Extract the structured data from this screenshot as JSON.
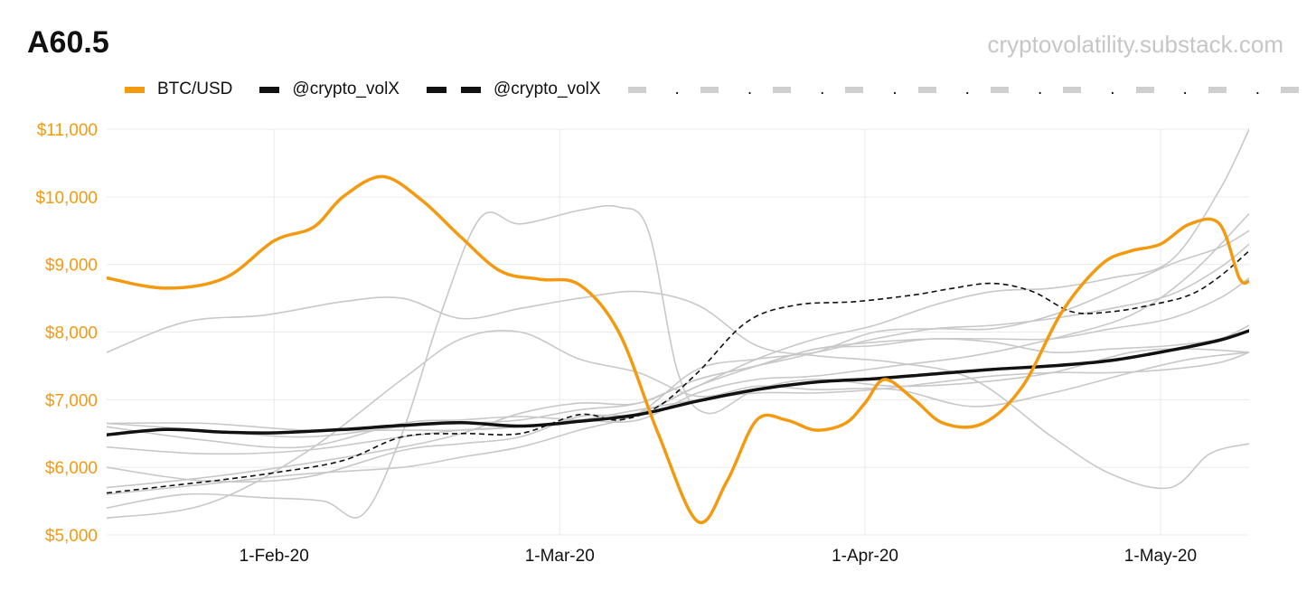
{
  "page": {
    "title": "A60.5",
    "watermark": "cryptovolatility.substack.com"
  },
  "legend": {
    "items": [
      {
        "label": "BTC/USD",
        "color": "#f39a11",
        "style": "solid"
      },
      {
        "label": "@crypto_volX",
        "color": "#111111",
        "style": "solid"
      },
      {
        "label": "@crypto_volX",
        "color": "#111111",
        "style": "dashed"
      }
    ],
    "grey_items": [
      ".",
      ".",
      ".",
      ".",
      ".",
      ".",
      ".",
      ".",
      ".",
      "."
    ]
  },
  "chart_data": {
    "type": "line",
    "title": "A60.5",
    "xlabel": "",
    "ylabel": "",
    "x_tick_labels": [
      "1-Feb-20",
      "1-Mar-20",
      "1-Apr-20",
      "1-May-20"
    ],
    "x_tick_days": [
      17,
      46,
      77,
      107
    ],
    "xlim": [
      0,
      116
    ],
    "y_tick_labels": [
      "$5,000",
      "$6,000",
      "$7,000",
      "$8,000",
      "$9,000",
      "$10,000",
      "$11,000"
    ],
    "y_ticks": [
      5000,
      6000,
      7000,
      8000,
      9000,
      10000,
      11000
    ],
    "ylim": [
      5000,
      11000
    ],
    "grid": true,
    "x_unit": "days since 16-Jan-20",
    "series": [
      {
        "name": "BTC/USD",
        "color": "#f39a11",
        "style": "solid",
        "width": 3.5,
        "x": [
          0,
          6,
          12,
          17,
          21,
          24,
          28,
          32,
          36,
          40,
          44,
          48,
          52,
          56,
          60,
          63,
          66,
          69,
          72,
          75,
          77,
          79,
          82,
          85,
          89,
          93,
          97,
          101,
          104,
          107,
          110,
          113,
          115,
          116
        ],
        "y": [
          8800,
          8650,
          8800,
          9350,
          9550,
          10000,
          10300,
          9950,
          9400,
          8900,
          8780,
          8700,
          8000,
          6500,
          5200,
          5800,
          6700,
          6700,
          6550,
          6650,
          6950,
          7300,
          7000,
          6650,
          6650,
          7200,
          8300,
          9000,
          9200,
          9300,
          9600,
          9600,
          8800,
          8750
        ]
      },
      {
        "name": "@crypto_volX",
        "color": "#111111",
        "style": "solid",
        "width": 3.5,
        "x": [
          0,
          6,
          12,
          17,
          24,
          30,
          36,
          42,
          48,
          54,
          60,
          66,
          72,
          78,
          84,
          90,
          96,
          102,
          108,
          113,
          116
        ],
        "y": [
          6480,
          6560,
          6520,
          6510,
          6560,
          6620,
          6660,
          6610,
          6680,
          6780,
          6980,
          7150,
          7260,
          7310,
          7380,
          7450,
          7500,
          7580,
          7730,
          7880,
          8020
        ]
      },
      {
        "name": "@crypto_volX",
        "color": "#111111",
        "style": "dashed",
        "width": 1.6,
        "x": [
          0,
          6,
          12,
          17,
          24,
          30,
          36,
          42,
          48,
          52,
          56,
          60,
          65,
          70,
          76,
          82,
          86,
          90,
          94,
          98,
          102,
          106,
          110,
          113,
          116
        ],
        "y": [
          5620,
          5720,
          5820,
          5920,
          6100,
          6450,
          6500,
          6500,
          6780,
          6700,
          6900,
          7400,
          8150,
          8400,
          8450,
          8550,
          8650,
          8720,
          8600,
          8300,
          8300,
          8400,
          8550,
          8820,
          9200
        ]
      },
      {
        "name": "grey-1",
        "color": "#c8c8c8",
        "style": "solid",
        "width": 1.6,
        "x": [
          0,
          8,
          16,
          24,
          30,
          36,
          42,
          48,
          54,
          60,
          66,
          72,
          80,
          88,
          96,
          102,
          108,
          112,
          116
        ],
        "y": [
          7700,
          8150,
          8250,
          8450,
          8500,
          8200,
          8350,
          8500,
          8600,
          8400,
          7800,
          7650,
          7550,
          7300,
          6450,
          5900,
          5700,
          6200,
          6350
        ]
      },
      {
        "name": "grey-2",
        "color": "#c8c8c8",
        "style": "solid",
        "width": 1.6,
        "x": [
          0,
          8,
          16,
          22,
          26,
          30,
          34,
          38,
          42,
          48,
          52,
          55,
          58,
          61,
          66,
          72,
          80,
          88,
          96,
          104,
          110,
          116
        ],
        "y": [
          5400,
          5600,
          5550,
          5500,
          5300,
          6500,
          8300,
          9700,
          9600,
          9800,
          9850,
          9500,
          7400,
          6800,
          7150,
          7300,
          7200,
          7250,
          7400,
          7700,
          7750,
          7700
        ]
      },
      {
        "name": "grey-3",
        "color": "#c8c8c8",
        "style": "solid",
        "width": 1.6,
        "x": [
          0,
          10,
          20,
          30,
          36,
          42,
          48,
          54,
          60,
          66,
          72,
          80,
          88,
          96,
          104,
          110,
          116
        ],
        "y": [
          5250,
          5450,
          6200,
          7300,
          7900,
          8000,
          7600,
          7400,
          7050,
          7200,
          7150,
          7150,
          6900,
          7100,
          7400,
          7600,
          7700
        ]
      },
      {
        "name": "grey-4",
        "color": "#c8c8c8",
        "style": "solid",
        "width": 1.6,
        "x": [
          0,
          10,
          20,
          30,
          36,
          42,
          48,
          54,
          60,
          66,
          72,
          80,
          88,
          96,
          104,
          110,
          116
        ],
        "y": [
          6600,
          6400,
          6300,
          6650,
          6700,
          6750,
          6700,
          6700,
          7100,
          7300,
          7350,
          7500,
          7650,
          7900,
          8250,
          8850,
          9750
        ]
      },
      {
        "name": "grey-5",
        "color": "#c8c8c8",
        "style": "solid",
        "width": 1.6,
        "x": [
          0,
          10,
          20,
          30,
          36,
          42,
          48,
          54,
          60,
          66,
          72,
          78,
          84,
          90,
          96,
          102,
          108,
          113,
          116
        ],
        "y": [
          5600,
          5750,
          5900,
          6000,
          6150,
          6300,
          6550,
          6800,
          7450,
          7600,
          7700,
          7900,
          8050,
          8100,
          8200,
          8350,
          8550,
          8950,
          9300
        ]
      },
      {
        "name": "grey-6",
        "color": "#c8c8c8",
        "style": "solid",
        "width": 1.6,
        "x": [
          0,
          10,
          20,
          30,
          36,
          42,
          48,
          54,
          60,
          66,
          72,
          78,
          84,
          90,
          96,
          102,
          108,
          113,
          116
        ],
        "y": [
          6300,
          6200,
          6250,
          6450,
          6550,
          6600,
          6700,
          6800,
          7200,
          7600,
          7900,
          8100,
          8400,
          8600,
          8650,
          8800,
          9050,
          10100,
          11000
        ]
      },
      {
        "name": "grey-7",
        "color": "#c8c8c8",
        "style": "solid",
        "width": 1.6,
        "x": [
          0,
          10,
          20,
          30,
          36,
          42,
          48,
          54,
          60,
          66,
          72,
          78,
          84,
          90,
          96,
          102,
          108,
          113,
          116
        ],
        "y": [
          6000,
          5800,
          5850,
          6250,
          6350,
          6450,
          6750,
          6800,
          7200,
          7500,
          7750,
          7850,
          7900,
          7900,
          7900,
          8050,
          8200,
          8500,
          8800
        ]
      },
      {
        "name": "grey-8",
        "color": "#c8c8c8",
        "style": "solid",
        "width": 1.6,
        "x": [
          0,
          10,
          20,
          30,
          36,
          42,
          48,
          54,
          60,
          66,
          72,
          78,
          84,
          90,
          96,
          102,
          108,
          113,
          116
        ],
        "y": [
          6650,
          6550,
          6450,
          6600,
          6650,
          6700,
          6850,
          6950,
          7300,
          7500,
          7750,
          7800,
          7900,
          7850,
          7700,
          7750,
          7800,
          7900,
          8100
        ]
      },
      {
        "name": "grey-9",
        "color": "#c8c8c8",
        "style": "solid",
        "width": 1.6,
        "x": [
          0,
          10,
          20,
          30,
          36,
          42,
          48,
          54,
          60,
          66,
          72,
          78,
          84,
          90,
          96,
          102,
          108,
          113,
          116
        ],
        "y": [
          5700,
          5850,
          6050,
          6300,
          6500,
          6800,
          6950,
          6950,
          7300,
          7500,
          7700,
          8000,
          8050,
          8050,
          8250,
          8600,
          9000,
          9250,
          9500
        ]
      },
      {
        "name": "grey-10",
        "color": "#c8c8c8",
        "style": "solid",
        "width": 1.6,
        "x": [
          0,
          10,
          20,
          30,
          36,
          42,
          48,
          54,
          60,
          66,
          72,
          78,
          84,
          90,
          96,
          102,
          108,
          113,
          116
        ],
        "y": [
          6650,
          6650,
          6550,
          6550,
          6550,
          6600,
          6700,
          6850,
          7000,
          7100,
          7100,
          7150,
          7250,
          7350,
          7400,
          7400,
          7450,
          7550,
          7700
        ]
      }
    ]
  }
}
